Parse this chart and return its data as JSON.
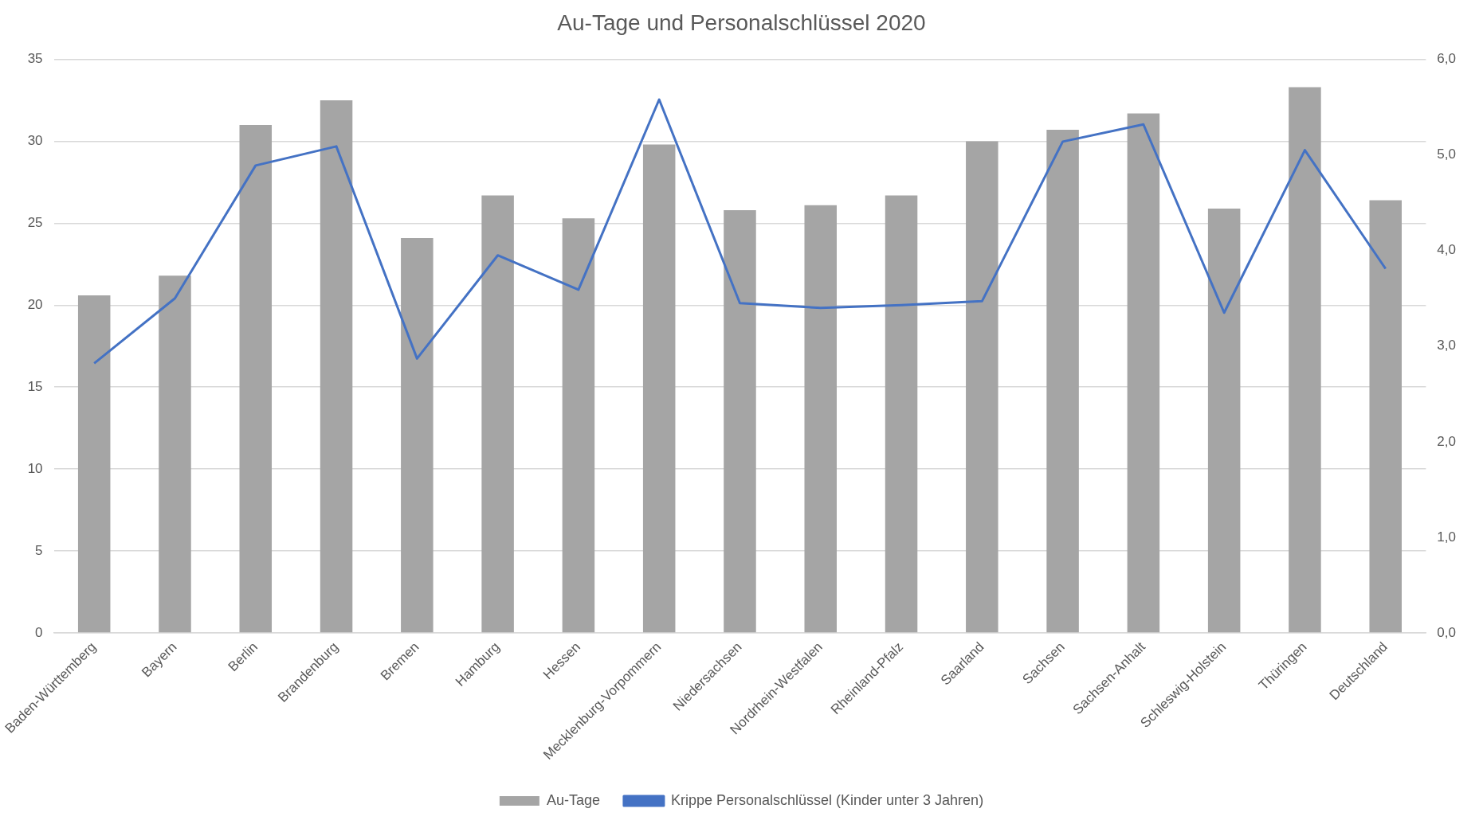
{
  "chart_data": {
    "type": "bar",
    "title": "Au-Tage und Personalschlüssel 2020",
    "categories": [
      "Baden-Württemberg",
      "Bayern",
      "Berlin",
      "Brandenburg",
      "Bremen",
      "Hamburg",
      "Hessen",
      "Mecklenburg-Vorpommern",
      "Niedersachsen",
      "Nordrhein-Westfalen",
      "Rheinland-Pfalz",
      "Saarland",
      "Sachsen",
      "Sachsen-Anhalt",
      "Schleswig-Holstein",
      "Thüringen",
      "Deutschland"
    ],
    "series": [
      {
        "name": "Au-Tage",
        "color": "#a5a5a5",
        "values": [
          20.6,
          21.8,
          31.0,
          32.5,
          24.1,
          26.7,
          25.3,
          29.8,
          25.8,
          26.1,
          26.7,
          30.0,
          30.7,
          31.7,
          25.9,
          33.3,
          26.4
        ]
      },
      {
        "name": "Krippe Personalschlüssel (Kinder unter 3 Jahren)",
        "type": "line",
        "axis": "y2",
        "color": "#4472c4",
        "values": [
          2.82,
          3.5,
          4.89,
          5.09,
          2.87,
          3.95,
          3.59,
          5.58,
          3.45,
          3.4,
          3.43,
          3.47,
          5.14,
          5.32,
          3.35,
          5.05,
          3.81
        ]
      }
    ],
    "ylim": [
      0,
      35
    ],
    "yticks": [
      0,
      5,
      10,
      15,
      20,
      25,
      30,
      35
    ],
    "y2lim": [
      0,
      6
    ],
    "y2ticks": [
      {
        "value": 0,
        "label": "0,0"
      },
      {
        "value": 1,
        "label": "1,0"
      },
      {
        "value": 2,
        "label": "2,0"
      },
      {
        "value": 3,
        "label": "3,0"
      },
      {
        "value": 4,
        "label": "4,0"
      },
      {
        "value": 5,
        "label": "5,0"
      },
      {
        "value": 6,
        "label": "6,0"
      }
    ],
    "grid": "y",
    "legend": "bottom",
    "marker": "none",
    "line_style": "solid"
  }
}
